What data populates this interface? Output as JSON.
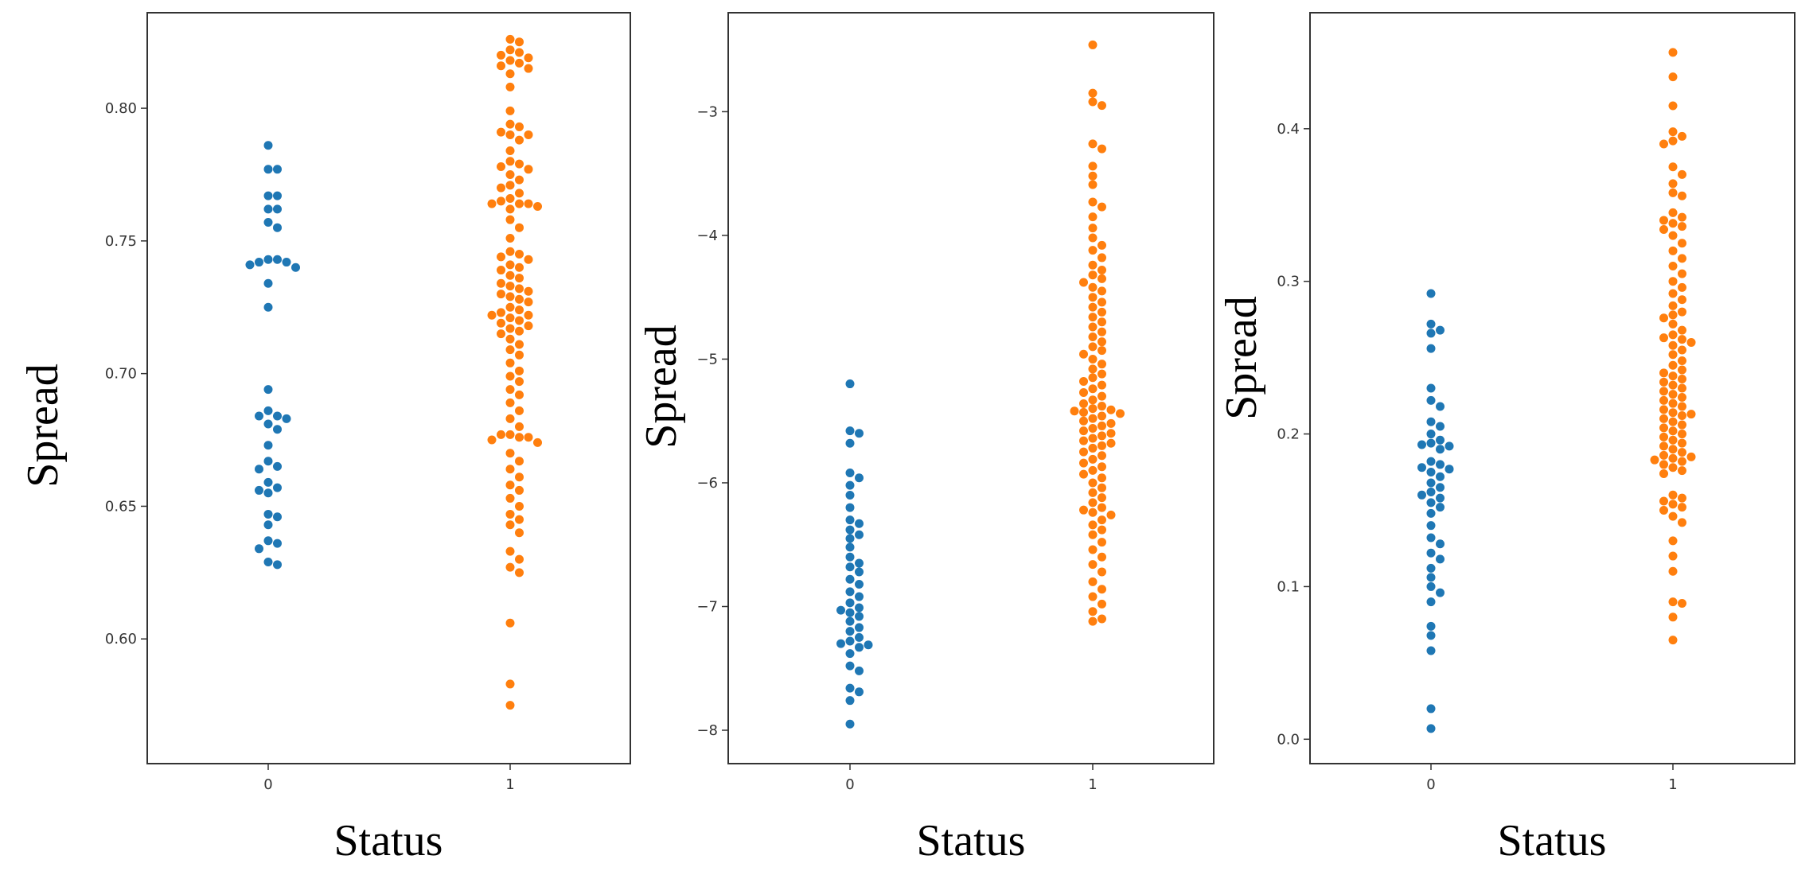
{
  "chart_data": [
    {
      "type": "scatter",
      "title": "",
      "xlabel": "Status",
      "ylabel": "Spread",
      "categories": [
        "0",
        "1"
      ],
      "ylim": [
        0.553,
        0.836
      ],
      "yticks": [
        "0.60",
        "0.65",
        "0.70",
        "0.75",
        "0.80"
      ],
      "grid": false,
      "colors": [
        "#1f77b4",
        "#ff7f0e"
      ],
      "series": [
        {
          "category": "0",
          "values": [
            0.786,
            0.777,
            0.777,
            0.767,
            0.767,
            0.762,
            0.762,
            0.757,
            0.755,
            0.743,
            0.743,
            0.742,
            0.742,
            0.741,
            0.74,
            0.734,
            0.725,
            0.694,
            0.686,
            0.684,
            0.684,
            0.683,
            0.681,
            0.679,
            0.673,
            0.667,
            0.665,
            0.664,
            0.659,
            0.657,
            0.656,
            0.655,
            0.647,
            0.646,
            0.643,
            0.637,
            0.636,
            0.634,
            0.629,
            0.628
          ]
        },
        {
          "category": "1",
          "values": [
            0.826,
            0.825,
            0.822,
            0.821,
            0.82,
            0.819,
            0.818,
            0.817,
            0.816,
            0.815,
            0.813,
            0.808,
            0.799,
            0.794,
            0.793,
            0.791,
            0.79,
            0.79,
            0.788,
            0.784,
            0.78,
            0.779,
            0.778,
            0.777,
            0.775,
            0.773,
            0.771,
            0.77,
            0.768,
            0.766,
            0.765,
            0.764,
            0.764,
            0.764,
            0.763,
            0.762,
            0.758,
            0.755,
            0.751,
            0.746,
            0.745,
            0.744,
            0.743,
            0.741,
            0.74,
            0.739,
            0.737,
            0.736,
            0.734,
            0.733,
            0.732,
            0.731,
            0.73,
            0.729,
            0.728,
            0.727,
            0.725,
            0.724,
            0.723,
            0.722,
            0.722,
            0.721,
            0.72,
            0.719,
            0.718,
            0.717,
            0.716,
            0.715,
            0.713,
            0.711,
            0.709,
            0.707,
            0.704,
            0.701,
            0.699,
            0.697,
            0.694,
            0.692,
            0.689,
            0.686,
            0.683,
            0.68,
            0.677,
            0.677,
            0.676,
            0.676,
            0.675,
            0.674,
            0.67,
            0.667,
            0.664,
            0.661,
            0.658,
            0.656,
            0.653,
            0.65,
            0.647,
            0.645,
            0.643,
            0.64,
            0.633,
            0.63,
            0.627,
            0.625,
            0.606,
            0.583,
            0.575
          ]
        }
      ]
    },
    {
      "type": "scatter",
      "title": "",
      "xlabel": "Status",
      "ylabel": "Spread",
      "categories": [
        "0",
        "1"
      ],
      "ylim": [
        -8.27,
        -2.2
      ],
      "yticks": [
        "−8",
        "−7",
        "−6",
        "−5",
        "−4",
        "−3"
      ],
      "grid": false,
      "colors": [
        "#1f77b4",
        "#ff7f0e"
      ],
      "series": [
        {
          "category": "0",
          "values": [
            -5.2,
            -5.58,
            -5.6,
            -5.68,
            -5.92,
            -5.96,
            -6.02,
            -6.1,
            -6.2,
            -6.3,
            -6.33,
            -6.38,
            -6.42,
            -6.45,
            -6.52,
            -6.6,
            -6.65,
            -6.68,
            -6.72,
            -6.78,
            -6.82,
            -6.88,
            -6.92,
            -6.97,
            -7.01,
            -7.03,
            -7.05,
            -7.08,
            -7.12,
            -7.17,
            -7.2,
            -7.25,
            -7.28,
            -7.3,
            -7.31,
            -7.33,
            -7.38,
            -7.48,
            -7.52,
            -7.66,
            -7.69,
            -7.76,
            -7.95
          ]
        },
        {
          "category": "1",
          "values": [
            -2.46,
            -2.85,
            -2.92,
            -2.95,
            -3.26,
            -3.3,
            -3.44,
            -3.52,
            -3.59,
            -3.73,
            -3.77,
            -3.85,
            -3.94,
            -4.02,
            -4.08,
            -4.12,
            -4.18,
            -4.24,
            -4.28,
            -4.32,
            -4.35,
            -4.38,
            -4.42,
            -4.45,
            -4.5,
            -4.54,
            -4.58,
            -4.62,
            -4.66,
            -4.7,
            -4.74,
            -4.78,
            -4.82,
            -4.86,
            -4.9,
            -4.93,
            -4.96,
            -5.0,
            -5.04,
            -5.08,
            -5.12,
            -5.15,
            -5.18,
            -5.21,
            -5.24,
            -5.27,
            -5.3,
            -5.33,
            -5.36,
            -5.38,
            -5.4,
            -5.41,
            -5.42,
            -5.43,
            -5.44,
            -5.46,
            -5.48,
            -5.5,
            -5.52,
            -5.54,
            -5.56,
            -5.58,
            -5.6,
            -5.62,
            -5.64,
            -5.66,
            -5.68,
            -5.7,
            -5.72,
            -5.75,
            -5.78,
            -5.81,
            -5.84,
            -5.87,
            -5.9,
            -5.93,
            -5.96,
            -6.0,
            -6.04,
            -6.08,
            -6.12,
            -6.16,
            -6.2,
            -6.22,
            -6.24,
            -6.26,
            -6.3,
            -6.34,
            -6.38,
            -6.42,
            -6.48,
            -6.54,
            -6.6,
            -6.66,
            -6.72,
            -6.8,
            -6.86,
            -6.92,
            -6.98,
            -7.04,
            -7.1,
            -7.12
          ]
        }
      ]
    },
    {
      "type": "scatter",
      "title": "",
      "xlabel": "Status",
      "ylabel": "Spread",
      "categories": [
        "0",
        "1"
      ],
      "ylim": [
        -0.016,
        0.476
      ],
      "yticks": [
        "0.0",
        "0.1",
        "0.2",
        "0.3",
        "0.4"
      ],
      "grid": false,
      "colors": [
        "#1f77b4",
        "#ff7f0e"
      ],
      "series": [
        {
          "category": "0",
          "values": [
            0.292,
            0.272,
            0.268,
            0.266,
            0.256,
            0.23,
            0.222,
            0.218,
            0.208,
            0.205,
            0.2,
            0.196,
            0.194,
            0.193,
            0.192,
            0.19,
            0.182,
            0.18,
            0.178,
            0.177,
            0.175,
            0.172,
            0.168,
            0.165,
            0.162,
            0.16,
            0.158,
            0.155,
            0.152,
            0.148,
            0.14,
            0.132,
            0.128,
            0.122,
            0.118,
            0.112,
            0.106,
            0.1,
            0.096,
            0.09,
            0.074,
            0.068,
            0.058,
            0.02,
            0.007
          ]
        },
        {
          "category": "1",
          "values": [
            0.45,
            0.434,
            0.415,
            0.398,
            0.395,
            0.392,
            0.39,
            0.375,
            0.37,
            0.364,
            0.358,
            0.356,
            0.345,
            0.342,
            0.34,
            0.338,
            0.336,
            0.334,
            0.33,
            0.325,
            0.32,
            0.315,
            0.31,
            0.305,
            0.3,
            0.296,
            0.292,
            0.288,
            0.284,
            0.28,
            0.278,
            0.276,
            0.272,
            0.268,
            0.265,
            0.263,
            0.262,
            0.26,
            0.258,
            0.255,
            0.252,
            0.248,
            0.245,
            0.242,
            0.24,
            0.238,
            0.236,
            0.234,
            0.232,
            0.23,
            0.228,
            0.226,
            0.224,
            0.222,
            0.22,
            0.218,
            0.216,
            0.214,
            0.213,
            0.212,
            0.21,
            0.208,
            0.206,
            0.204,
            0.202,
            0.2,
            0.198,
            0.196,
            0.194,
            0.192,
            0.19,
            0.188,
            0.186,
            0.185,
            0.184,
            0.183,
            0.182,
            0.18,
            0.178,
            0.176,
            0.174,
            0.16,
            0.158,
            0.156,
            0.154,
            0.152,
            0.15,
            0.146,
            0.142,
            0.13,
            0.12,
            0.11,
            0.09,
            0.089,
            0.08,
            0.065
          ]
        }
      ]
    }
  ]
}
